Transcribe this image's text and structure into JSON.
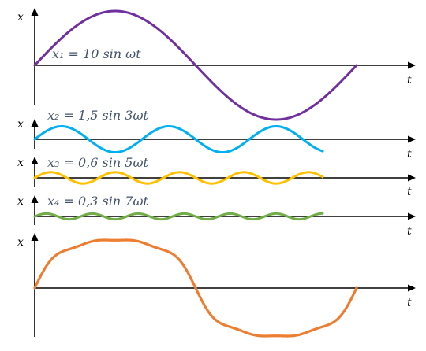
{
  "axis_labels": {
    "y": "x",
    "x": "t"
  },
  "panels": [
    {
      "id": "p1",
      "equation": "x₁ = 10 sin ωt",
      "amplitude": 10,
      "harmonic": 1,
      "color": "#7030a0"
    },
    {
      "id": "p2",
      "equation": "x₂ = 1,5 sin 3ωt",
      "amplitude": 1.5,
      "harmonic": 3,
      "color": "#00b0f0"
    },
    {
      "id": "p3",
      "equation": "x₃ = 0,6 sin 5ωt",
      "amplitude": 0.6,
      "harmonic": 5,
      "color": "#ffc000"
    },
    {
      "id": "p4",
      "equation": "x₄ = 0,3 sin 7ωt",
      "amplitude": 0.3,
      "harmonic": 7,
      "color": "#70ad47"
    },
    {
      "id": "p5",
      "equation": "",
      "sum_of": [
        "p1",
        "p2",
        "p3",
        "p4"
      ],
      "color": "#ed7d31"
    }
  ]
}
